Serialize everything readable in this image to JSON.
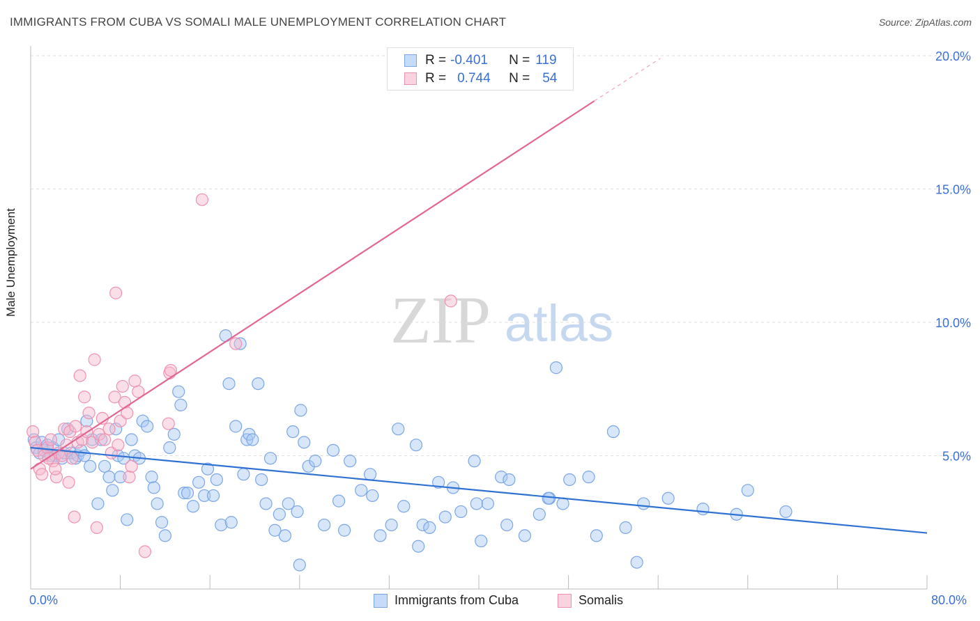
{
  "title": "IMMIGRANTS FROM CUBA VS SOMALI MALE UNEMPLOYMENT CORRELATION CHART",
  "source": "Source: ZipAtlas.com",
  "colors": {
    "blue_fill": "#a9c8f3",
    "blue_stroke": "#7aa6e6",
    "blue_line": "#2f72d4",
    "pink_fill": "#f7b8cc",
    "pink_stroke": "#ee92b0",
    "pink_line": "#e2668f",
    "grid": "#dddddd",
    "axis_text": "#3a6fd8"
  },
  "watermark": {
    "zip": "ZIP",
    "atlas": "atlas"
  },
  "legend_top": {
    "rows": [
      {
        "r_label": "R =",
        "r_value": "-0.401",
        "n_label": "N =",
        "n_value": "119"
      },
      {
        "r_label": "R =",
        "r_value": "0.744",
        "n_label": "N =",
        "n_value": "54"
      }
    ]
  },
  "legend_bottom": [
    "Immigrants from Cuba",
    "Somalis"
  ],
  "chart_data": {
    "type": "scatter",
    "xlabel": "",
    "ylabel": "Male Unemployment",
    "xlim": [
      0,
      80
    ],
    "ylim": [
      0,
      20
    ],
    "x_tick_labels": [
      "0.0%",
      "80.0%"
    ],
    "y_tick_labels": [
      "5.0%",
      "10.0%",
      "15.0%",
      "20.0%"
    ],
    "y_ticks": [
      5,
      10,
      15,
      20
    ],
    "grid": "horizontal dashed",
    "legend_placement": "top-center",
    "series": [
      {
        "name": "Immigrants from Cuba",
        "r": -0.401,
        "n": 119,
        "trend": {
          "x": [
            0,
            80
          ],
          "y": [
            5.3,
            2.1
          ]
        },
        "points": [
          [
            0.3,
            5.6
          ],
          [
            0.5,
            5.3
          ],
          [
            0.8,
            5.1
          ],
          [
            1.0,
            5.5
          ],
          [
            1.2,
            5.2
          ],
          [
            1.5,
            5.4
          ],
          [
            1.8,
            5.0
          ],
          [
            2.0,
            5.3
          ],
          [
            2.2,
            5.0
          ],
          [
            2.5,
            5.6
          ],
          [
            2.8,
            4.9
          ],
          [
            3.0,
            5.1
          ],
          [
            3.3,
            6.0
          ],
          [
            3.6,
            5.1
          ],
          [
            4.0,
            4.9
          ],
          [
            4.2,
            5.0
          ],
          [
            4.5,
            5.2
          ],
          [
            4.8,
            5.0
          ],
          [
            5.0,
            6.3
          ],
          [
            5.3,
            4.6
          ],
          [
            5.5,
            5.6
          ],
          [
            6.0,
            3.2
          ],
          [
            6.3,
            5.6
          ],
          [
            6.6,
            4.6
          ],
          [
            7.0,
            4.2
          ],
          [
            7.3,
            3.7
          ],
          [
            7.6,
            6.0
          ],
          [
            7.8,
            5.0
          ],
          [
            8.0,
            4.2
          ],
          [
            8.3,
            4.9
          ],
          [
            8.6,
            2.6
          ],
          [
            9.0,
            5.6
          ],
          [
            9.3,
            5.0
          ],
          [
            9.7,
            4.9
          ],
          [
            10.0,
            6.3
          ],
          [
            10.4,
            6.1
          ],
          [
            10.8,
            4.2
          ],
          [
            11.0,
            3.8
          ],
          [
            11.3,
            3.2
          ],
          [
            11.7,
            2.5
          ],
          [
            12.0,
            2.0
          ],
          [
            12.4,
            5.3
          ],
          [
            12.8,
            5.8
          ],
          [
            13.2,
            7.4
          ],
          [
            13.4,
            6.9
          ],
          [
            13.7,
            3.6
          ],
          [
            14.0,
            3.6
          ],
          [
            14.5,
            3.1
          ],
          [
            15.0,
            4.0
          ],
          [
            15.5,
            3.5
          ],
          [
            15.8,
            4.5
          ],
          [
            16.3,
            3.5
          ],
          [
            16.6,
            4.1
          ],
          [
            17.0,
            2.4
          ],
          [
            17.4,
            9.5
          ],
          [
            17.7,
            7.7
          ],
          [
            17.9,
            2.5
          ],
          [
            18.3,
            6.1
          ],
          [
            18.7,
            9.2
          ],
          [
            19.0,
            4.3
          ],
          [
            19.3,
            5.6
          ],
          [
            19.5,
            5.8
          ],
          [
            19.8,
            5.6
          ],
          [
            20.3,
            7.7
          ],
          [
            20.6,
            4.1
          ],
          [
            21.0,
            3.2
          ],
          [
            21.4,
            4.9
          ],
          [
            21.8,
            2.2
          ],
          [
            22.2,
            2.8
          ],
          [
            22.7,
            2.0
          ],
          [
            23.0,
            3.2
          ],
          [
            23.4,
            5.9
          ],
          [
            23.8,
            2.9
          ],
          [
            24.1,
            6.7
          ],
          [
            24.4,
            5.5
          ],
          [
            24.8,
            4.6
          ],
          [
            25.4,
            4.8
          ],
          [
            26.2,
            2.4
          ],
          [
            27.0,
            5.2
          ],
          [
            27.5,
            3.3
          ],
          [
            28.0,
            2.2
          ],
          [
            28.5,
            4.8
          ],
          [
            29.5,
            3.7
          ],
          [
            30.3,
            4.3
          ],
          [
            30.5,
            3.5
          ],
          [
            31.2,
            2.0
          ],
          [
            32.2,
            2.4
          ],
          [
            32.8,
            6.0
          ],
          [
            33.3,
            3.1
          ],
          [
            34.4,
            5.4
          ],
          [
            34.6,
            1.6
          ],
          [
            35.0,
            2.4
          ],
          [
            35.6,
            2.3
          ],
          [
            36.4,
            4.0
          ],
          [
            37.0,
            2.7
          ],
          [
            37.7,
            3.8
          ],
          [
            38.4,
            2.9
          ],
          [
            39.6,
            4.8
          ],
          [
            39.8,
            3.2
          ],
          [
            40.2,
            1.8
          ],
          [
            40.8,
            3.2
          ],
          [
            42.0,
            4.2
          ],
          [
            42.5,
            2.4
          ],
          [
            42.7,
            4.1
          ],
          [
            44.1,
            2.0
          ],
          [
            45.4,
            2.8
          ],
          [
            46.3,
            3.4
          ],
          [
            46.9,
            8.3
          ],
          [
            47.5,
            3.2
          ],
          [
            48.1,
            4.1
          ],
          [
            49.8,
            4.2
          ],
          [
            50.5,
            2.0
          ],
          [
            52.0,
            5.9
          ],
          [
            53.1,
            2.3
          ],
          [
            54.1,
            1.0
          ],
          [
            54.7,
            3.2
          ],
          [
            56.9,
            3.4
          ],
          [
            60.0,
            3.0
          ],
          [
            63.0,
            2.8
          ],
          [
            64.0,
            3.7
          ],
          [
            67.4,
            2.9
          ],
          [
            24.0,
            0.9
          ],
          [
            46.2,
            3.4
          ]
        ]
      },
      {
        "name": "Somalis",
        "r": 0.744,
        "n": 54,
        "trend": {
          "x": [
            0,
            50.3
          ],
          "y": [
            4.5,
            18.3
          ]
        },
        "trend_dashed": {
          "x": [
            50.3,
            56.2
          ],
          "y": [
            18.3,
            19.9
          ]
        },
        "points": [
          [
            0.2,
            5.9
          ],
          [
            0.4,
            5.5
          ],
          [
            0.6,
            5.2
          ],
          [
            0.8,
            4.5
          ],
          [
            1.0,
            4.3
          ],
          [
            1.2,
            5.0
          ],
          [
            1.5,
            5.3
          ],
          [
            1.8,
            5.6
          ],
          [
            2.0,
            4.8
          ],
          [
            2.3,
            4.2
          ],
          [
            2.5,
            5.1
          ],
          [
            2.8,
            5.0
          ],
          [
            3.0,
            6.0
          ],
          [
            3.2,
            5.4
          ],
          [
            3.4,
            4.0
          ],
          [
            3.5,
            5.9
          ],
          [
            3.7,
            4.9
          ],
          [
            3.9,
            2.7
          ],
          [
            4.0,
            6.1
          ],
          [
            4.2,
            5.5
          ],
          [
            4.4,
            8.0
          ],
          [
            4.6,
            5.6
          ],
          [
            4.8,
            7.2
          ],
          [
            5.0,
            5.9
          ],
          [
            5.2,
            6.6
          ],
          [
            5.5,
            5.5
          ],
          [
            5.7,
            8.6
          ],
          [
            5.9,
            2.3
          ],
          [
            6.1,
            5.8
          ],
          [
            6.4,
            6.4
          ],
          [
            6.6,
            5.6
          ],
          [
            7.0,
            6.0
          ],
          [
            7.2,
            5.1
          ],
          [
            7.5,
            7.2
          ],
          [
            7.6,
            11.1
          ],
          [
            7.8,
            5.4
          ],
          [
            8.0,
            6.3
          ],
          [
            8.2,
            7.6
          ],
          [
            8.4,
            7.0
          ],
          [
            8.6,
            6.6
          ],
          [
            8.8,
            4.2
          ],
          [
            9.0,
            4.6
          ],
          [
            9.3,
            7.8
          ],
          [
            9.6,
            7.4
          ],
          [
            10.2,
            1.4
          ],
          [
            12.3,
            6.2
          ],
          [
            12.4,
            8.1
          ],
          [
            12.5,
            8.2
          ],
          [
            15.3,
            14.6
          ],
          [
            18.3,
            9.2
          ],
          [
            37.5,
            10.8
          ],
          [
            41.7,
            19.7
          ],
          [
            2.2,
            4.5
          ],
          [
            1.6,
            4.9
          ]
        ]
      }
    ]
  }
}
